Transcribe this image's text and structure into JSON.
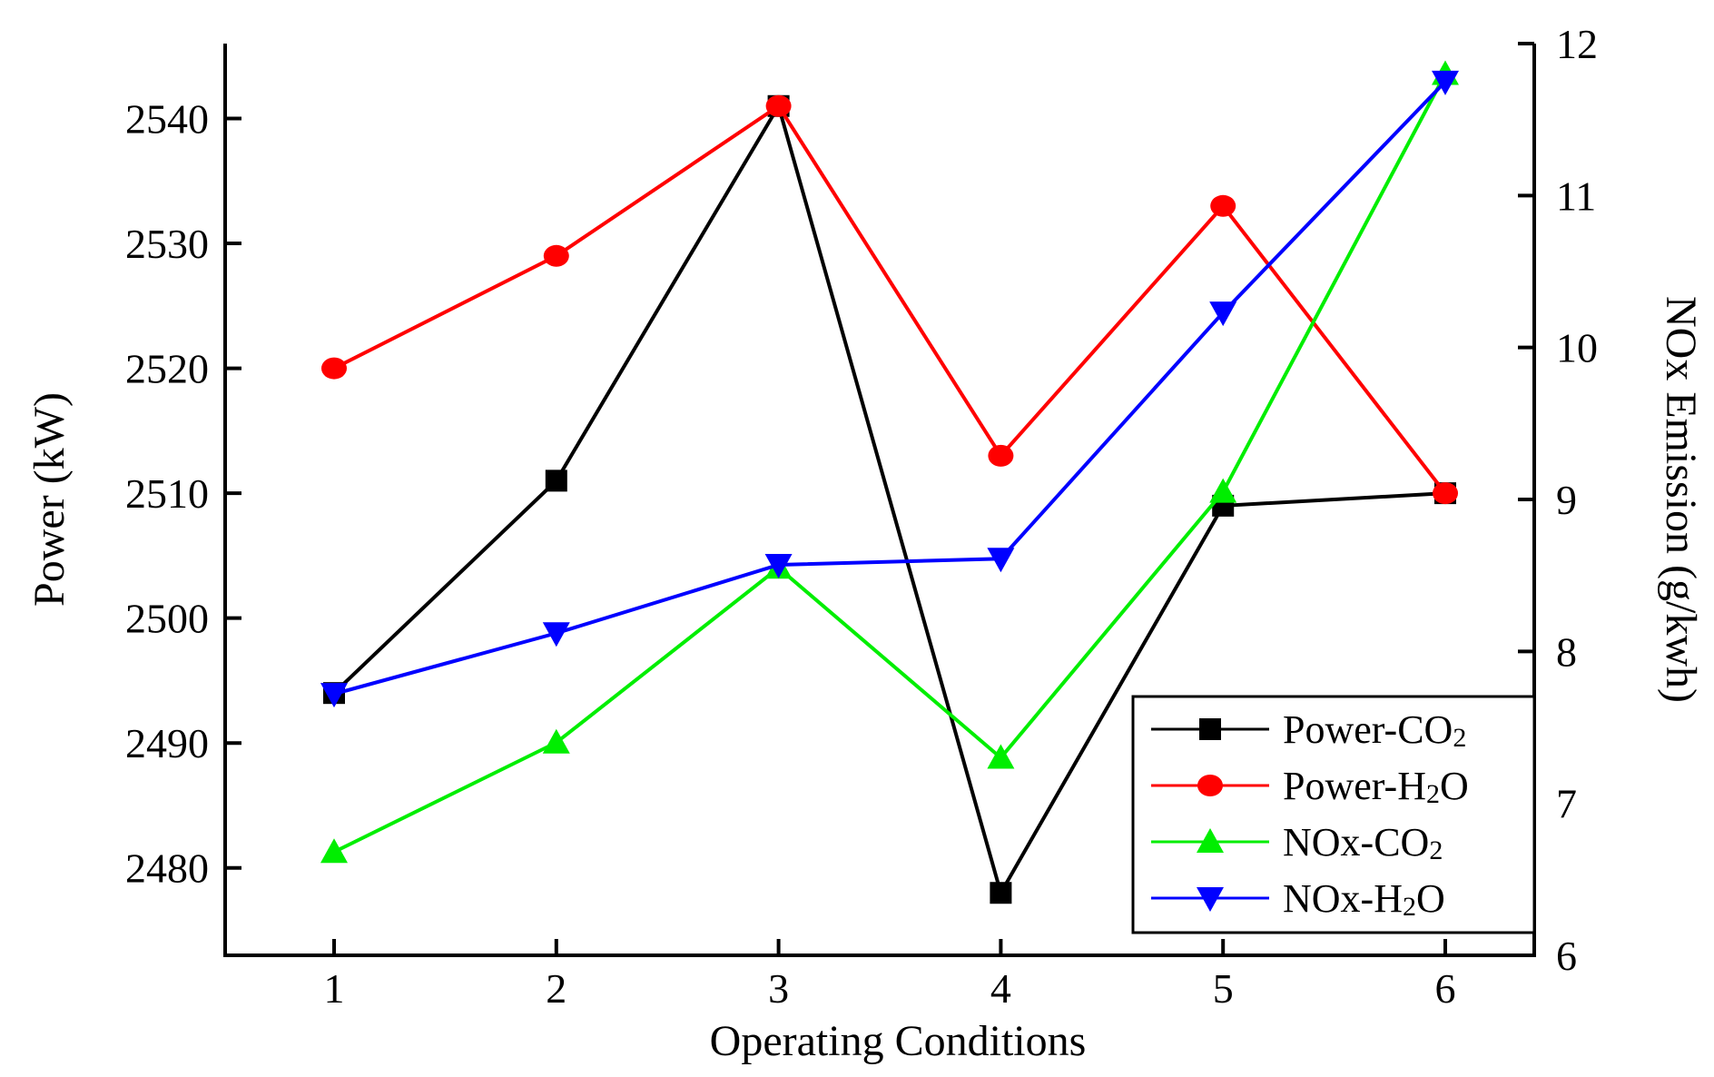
{
  "chart_data": {
    "type": "line",
    "x": [
      1,
      2,
      3,
      4,
      5,
      6
    ],
    "xlabel": "Operating Conditions",
    "xticks": [
      "1",
      "2",
      "3",
      "4",
      "5",
      "6"
    ],
    "ylabel": "Power (kW)",
    "y2label": "NOx Emission (g/kwh)",
    "ylim": [
      2473,
      2546
    ],
    "y2lim": [
      6,
      12
    ],
    "yticks": [
      2480,
      2490,
      2500,
      2510,
      2520,
      2530,
      2540
    ],
    "y2ticks": [
      6,
      7,
      8,
      9,
      10,
      11,
      12
    ],
    "legend_position": "bottom-right",
    "series": [
      {
        "name": "Power-CO2",
        "label_main": "Power-CO",
        "label_sub": "2",
        "axis": "left",
        "color": "#000000",
        "marker": "square",
        "values": [
          2494,
          2511,
          2541,
          2478,
          2509,
          2510
        ]
      },
      {
        "name": "Power-H2O",
        "label_main": "Power-H",
        "label_sub": "2",
        "label_tail": "O",
        "axis": "left",
        "color": "#ff0000",
        "marker": "circle",
        "values": [
          2520,
          2529,
          2541,
          2513,
          2533,
          2510
        ]
      },
      {
        "name": "NOx-CO2",
        "label_main": "NOx-CO",
        "label_sub": "2",
        "axis": "right",
        "color": "#00ee00",
        "marker": "triangle-up",
        "values": [
          6.68,
          7.4,
          8.55,
          7.3,
          9.05,
          11.8
        ]
      },
      {
        "name": "NOx-H2O",
        "label_main": "NOx-H",
        "label_sub": "2",
        "label_tail": "O",
        "axis": "right",
        "color": "#0000ff",
        "marker": "triangle-down",
        "values": [
          7.72,
          8.12,
          8.57,
          8.61,
          10.23,
          11.75
        ]
      }
    ]
  }
}
